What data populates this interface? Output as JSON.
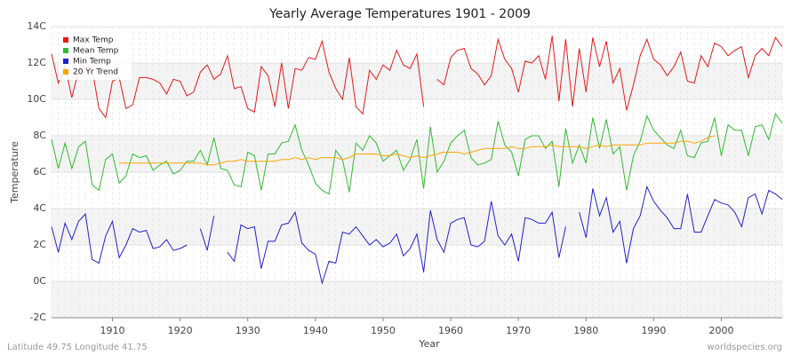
{
  "chart_data": {
    "type": "line",
    "title": "Yearly Average Temperatures 1901 - 2009",
    "x_label": "Year",
    "y_label": "Temperature",
    "footnote": "Latitude 49.75 Longitude 41.75",
    "source": "worldspecies.org",
    "x": [
      1901,
      1902,
      1903,
      1904,
      1905,
      1906,
      1907,
      1908,
      1909,
      1910,
      1911,
      1912,
      1913,
      1914,
      1915,
      1916,
      1917,
      1918,
      1919,
      1920,
      1921,
      1922,
      1923,
      1924,
      1925,
      1926,
      1927,
      1928,
      1929,
      1930,
      1931,
      1932,
      1933,
      1934,
      1935,
      1936,
      1937,
      1938,
      1939,
      1940,
      1941,
      1942,
      1943,
      1944,
      1945,
      1946,
      1947,
      1948,
      1949,
      1950,
      1951,
      1952,
      1953,
      1954,
      1955,
      1956,
      1957,
      1958,
      1959,
      1960,
      1961,
      1962,
      1963,
      1964,
      1965,
      1966,
      1967,
      1968,
      1969,
      1970,
      1971,
      1972,
      1973,
      1974,
      1975,
      1976,
      1977,
      1978,
      1979,
      1980,
      1981,
      1982,
      1983,
      1984,
      1985,
      1986,
      1987,
      1988,
      1989,
      1990,
      1991,
      1992,
      1993,
      1994,
      1995,
      1996,
      1997,
      1998,
      1999,
      2000,
      2001,
      2002,
      2003,
      2004,
      2005,
      2006,
      2007,
      2008,
      2009
    ],
    "series": [
      {
        "name": "Max Temp",
        "color": "#e31a1c",
        "values": [
          12.5,
          10.9,
          11.8,
          10.1,
          11.6,
          11.8,
          11.7,
          9.5,
          9.0,
          11.0,
          11.2,
          9.5,
          9.7,
          11.2,
          11.2,
          11.1,
          10.9,
          10.3,
          11.1,
          11.0,
          10.2,
          10.4,
          11.5,
          11.9,
          11.1,
          11.4,
          12.4,
          10.6,
          10.7,
          9.5,
          9.3,
          11.8,
          11.3,
          9.6,
          12.0,
          9.5,
          11.7,
          11.6,
          12.3,
          12.2,
          13.2,
          11.5,
          10.6,
          10.0,
          12.3,
          9.6,
          9.2,
          11.6,
          11.1,
          11.9,
          11.6,
          12.7,
          11.9,
          11.7,
          12.5,
          9.6,
          null,
          11.1,
          10.8,
          12.3,
          12.7,
          12.8,
          11.7,
          11.4,
          10.8,
          11.3,
          13.3,
          12.2,
          11.7,
          10.4,
          12.1,
          12.0,
          12.4,
          11.1,
          13.5,
          9.9,
          13.3,
          9.6,
          12.8,
          10.4,
          13.4,
          11.8,
          13.2,
          10.9,
          11.7,
          9.4,
          10.8,
          12.4,
          13.3,
          12.2,
          11.9,
          11.3,
          11.8,
          12.6,
          11.0,
          10.9,
          12.4,
          11.8,
          13.1,
          12.9,
          12.4,
          12.7,
          12.9,
          11.2,
          12.4,
          12.8,
          12.4,
          13.4,
          12.9
        ]
      },
      {
        "name": "Mean Temp",
        "color": "#33bb33",
        "values": [
          7.8,
          6.2,
          7.6,
          6.2,
          7.4,
          7.7,
          5.3,
          5.0,
          6.7,
          7.0,
          5.4,
          5.8,
          7.0,
          6.8,
          6.9,
          6.1,
          6.4,
          6.6,
          5.9,
          6.1,
          6.6,
          6.6,
          7.2,
          6.4,
          7.9,
          6.2,
          6.1,
          5.3,
          5.2,
          7.1,
          6.9,
          5.0,
          7.0,
          7.0,
          7.6,
          7.7,
          8.6,
          7.2,
          6.4,
          5.4,
          5.0,
          4.8,
          7.2,
          6.7,
          4.9,
          7.6,
          7.2,
          8.0,
          7.6,
          6.6,
          6.9,
          7.2,
          6.1,
          6.7,
          7.8,
          5.1,
          8.5,
          6.0,
          6.6,
          7.6,
          8.0,
          8.3,
          6.8,
          6.4,
          6.5,
          6.7,
          8.8,
          7.5,
          7.1,
          5.8,
          7.8,
          8.0,
          8.0,
          7.3,
          7.7,
          5.2,
          8.4,
          6.5,
          7.5,
          6.5,
          9.0,
          7.3,
          8.9,
          7.0,
          7.4,
          5.0,
          6.9,
          7.7,
          9.1,
          8.3,
          7.9,
          7.5,
          7.3,
          8.3,
          6.9,
          6.8,
          7.6,
          7.7,
          9.0,
          6.9,
          8.6,
          8.3,
          8.3,
          6.9,
          8.5,
          8.6,
          7.8,
          9.2,
          8.7
        ]
      },
      {
        "name": "Min Temp",
        "color": "#2222cc",
        "values": [
          3.0,
          1.6,
          3.2,
          2.3,
          3.3,
          3.7,
          1.2,
          1.0,
          2.5,
          3.3,
          1.3,
          2.0,
          2.9,
          2.7,
          2.8,
          1.8,
          1.9,
          2.3,
          1.7,
          1.8,
          2.0,
          null,
          2.9,
          1.7,
          3.6,
          null,
          1.6,
          1.1,
          3.1,
          2.9,
          3.0,
          0.7,
          2.2,
          2.2,
          3.1,
          3.2,
          3.8,
          2.1,
          1.7,
          1.5,
          -0.1,
          1.1,
          1.0,
          2.7,
          2.6,
          3.0,
          2.5,
          2.0,
          2.3,
          1.9,
          2.1,
          2.6,
          1.4,
          1.8,
          2.6,
          0.5,
          3.9,
          2.3,
          1.6,
          3.2,
          3.4,
          3.5,
          2.0,
          1.9,
          2.2,
          4.4,
          2.5,
          2.0,
          2.6,
          1.1,
          3.5,
          3.4,
          3.2,
          3.2,
          3.8,
          1.3,
          3.0,
          null,
          3.8,
          2.4,
          5.1,
          3.6,
          4.6,
          2.7,
          3.3,
          1.0,
          2.9,
          3.6,
          5.2,
          4.4,
          3.9,
          3.5,
          2.9,
          2.9,
          4.8,
          2.7,
          2.7,
          3.6,
          4.5,
          4.3,
          4.2,
          3.8,
          3.0,
          4.6,
          4.8,
          3.7,
          5.0,
          4.8,
          4.5
        ]
      },
      {
        "name": "20 Yr Trend",
        "color": "#ffa500",
        "values": [
          null,
          null,
          null,
          null,
          null,
          null,
          null,
          null,
          null,
          null,
          6.5,
          6.5,
          6.5,
          6.5,
          6.5,
          6.5,
          6.5,
          6.5,
          6.5,
          6.5,
          6.5,
          6.5,
          6.5,
          6.4,
          6.4,
          6.5,
          6.6,
          6.6,
          6.7,
          6.6,
          6.6,
          6.6,
          6.6,
          6.6,
          6.7,
          6.7,
          6.8,
          6.7,
          6.8,
          6.7,
          6.8,
          6.8,
          6.8,
          6.7,
          6.8,
          7.0,
          7.0,
          7.0,
          7.0,
          6.9,
          6.9,
          7.0,
          6.9,
          6.8,
          6.9,
          6.8,
          6.9,
          7.0,
          7.1,
          7.1,
          7.1,
          7.0,
          7.1,
          7.2,
          7.3,
          7.3,
          7.3,
          7.3,
          7.4,
          7.3,
          7.3,
          7.4,
          7.4,
          7.4,
          7.5,
          7.4,
          7.4,
          7.4,
          7.4,
          7.3,
          7.4,
          7.5,
          7.4,
          7.5,
          7.5,
          7.5,
          7.5,
          7.5,
          7.6,
          7.6,
          7.6,
          7.6,
          7.6,
          7.7,
          7.7,
          7.6,
          7.7,
          7.9,
          8.0,
          null,
          null,
          null,
          null,
          null,
          null,
          null,
          null,
          null,
          null
        ]
      }
    ],
    "xlim": [
      1901,
      2009
    ],
    "ylim": [
      -2,
      14
    ],
    "xticks": [
      1910,
      1920,
      1930,
      1940,
      1950,
      1960,
      1970,
      1980,
      1990,
      2000
    ],
    "yticks": [
      {
        "value": -2,
        "label": "-2C"
      },
      {
        "value": 0,
        "label": "0C"
      },
      {
        "value": 2,
        "label": "2C"
      },
      {
        "value": 4,
        "label": "4C"
      },
      {
        "value": 6,
        "label": "6C"
      },
      {
        "value": 8,
        "label": "8C"
      },
      {
        "value": 10,
        "label": "10C"
      },
      {
        "value": 12,
        "label": "12C"
      },
      {
        "value": 14,
        "label": "14C"
      }
    ],
    "grid": true,
    "legend": "top-left"
  }
}
